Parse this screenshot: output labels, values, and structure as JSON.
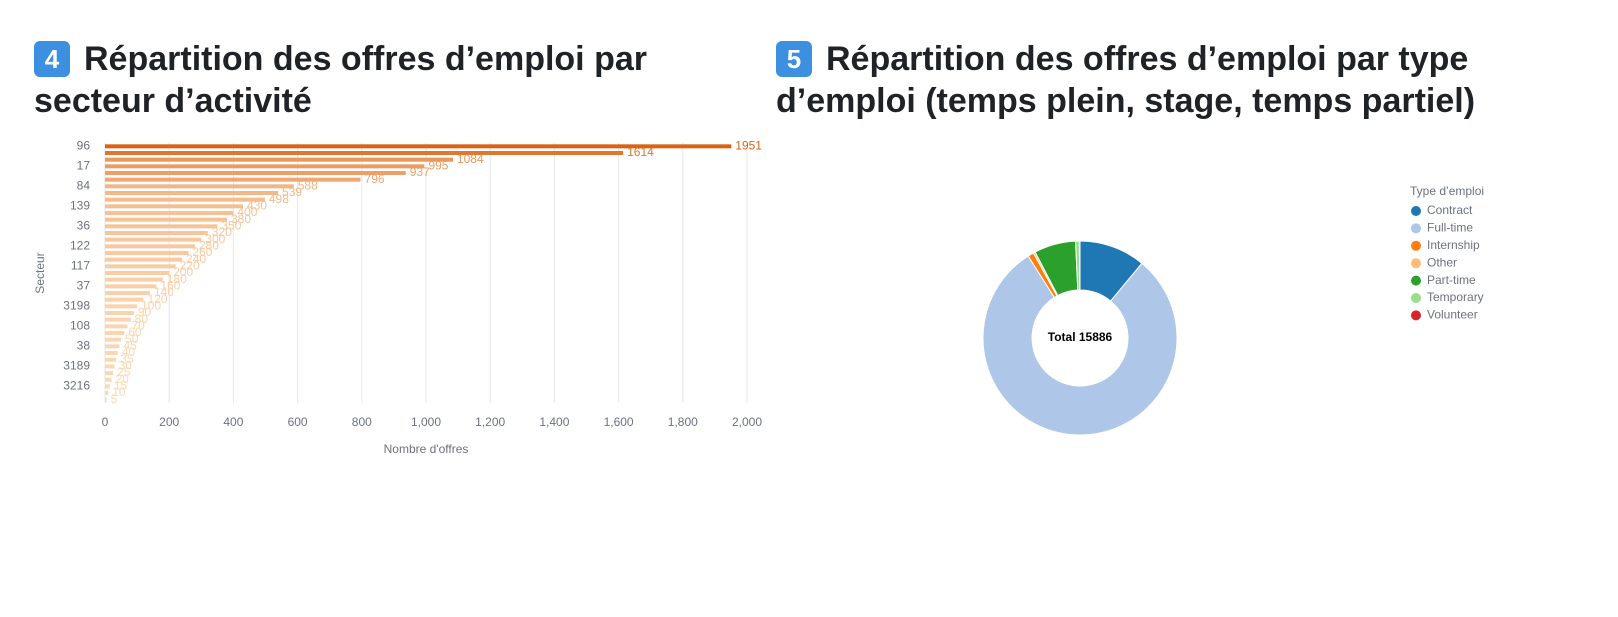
{
  "chart_data": [
    {
      "type": "bar",
      "orientation": "horizontal",
      "badge": "4",
      "title": "Répartition des offres d’emploi par secteur d’activité",
      "x_label": "Nombre d'offres",
      "y_label": "Secteur",
      "categories": [
        "96",
        null,
        null,
        "17",
        null,
        null,
        "84",
        null,
        null,
        "139",
        null,
        null,
        "36",
        null,
        null,
        "122",
        null,
        null,
        "117",
        null,
        null,
        "37",
        null,
        null,
        "3198",
        null,
        null,
        "108",
        null,
        null,
        "38",
        null,
        null,
        "3189",
        null,
        null,
        "3216",
        null,
        null
      ],
      "values": [
        1951,
        1614,
        1084,
        995,
        937,
        796,
        588,
        539,
        498,
        430,
        400,
        380,
        350,
        320,
        300,
        280,
        260,
        240,
        220,
        200,
        180,
        160,
        140,
        120,
        100,
        90,
        80,
        70,
        60,
        50,
        45,
        40,
        35,
        30,
        25,
        20,
        15,
        10,
        5
      ],
      "colors": [
        "#d95f0e",
        "#fdd9b5"
      ],
      "xlim": [
        0,
        2000
      ],
      "xticks": [
        0,
        200,
        400,
        600,
        800,
        {
          "value": 1000,
          "label": "1,000"
        },
        {
          "value": 1200,
          "label": "1,200"
        },
        {
          "value": 1400,
          "label": "1,400"
        },
        {
          "value": 1600,
          "label": "1,600"
        },
        {
          "value": 1800,
          "label": "1,800"
        },
        {
          "value": 2000,
          "label": "2,000"
        }
      ],
      "grid": true
    },
    {
      "type": "pie",
      "badge": "5",
      "title": "Répartition des offres d’emploi par type d’emploi (temps plein, stage, temps partiel)",
      "legend_title": "Type d’emploi",
      "center_label": "Total 15886",
      "categories": [
        "Contract",
        "Full-time",
        "Internship",
        "Other",
        "Part-time",
        "Temporary",
        "Volunteer"
      ],
      "values": [
        1750,
        12710,
        160,
        50,
        1100,
        100,
        16
      ],
      "colors": [
        "#1f77b4",
        "#aec7e8",
        "#ff7f0e",
        "#ffbb78",
        "#2ca02c",
        "#98df8a",
        "#d62728"
      ],
      "legend": "right"
    }
  ]
}
